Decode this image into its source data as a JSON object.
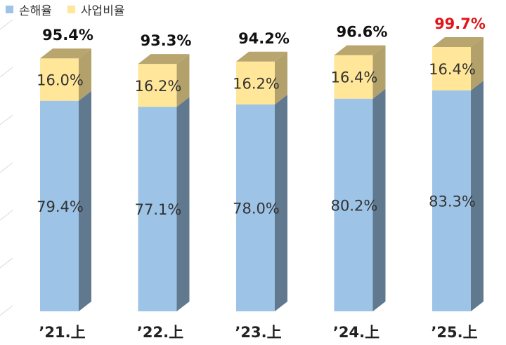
{
  "chart_data": {
    "type": "bar",
    "stacked": true,
    "style": "3d-column",
    "categories": [
      "’21.上",
      "’22.上",
      "’23.上",
      "’24.上",
      "’25.上"
    ],
    "series": [
      {
        "name": "손해율",
        "color": "#9DC3E6",
        "values": [
          79.4,
          77.1,
          78.0,
          80.2,
          83.3
        ],
        "labels": [
          "79.4%",
          "77.1%",
          "78.0%",
          "80.2%",
          "83.3%"
        ]
      },
      {
        "name": "사업비율",
        "color": "#FFE699",
        "values": [
          16.0,
          16.2,
          16.2,
          16.4,
          16.4
        ],
        "labels": [
          "16.0%",
          "16.2%",
          "16.2%",
          "16.4%",
          "16.4%"
        ]
      }
    ],
    "totals": [
      95.4,
      93.3,
      94.2,
      96.6,
      99.7
    ],
    "total_labels": [
      "95.4%",
      "93.3%",
      "94.2%",
      "96.6%",
      "99.7%"
    ],
    "highlight_color": "#E0161B",
    "highlight_index": 4,
    "ylim": [
      0,
      110
    ],
    "grid": true,
    "legend_position": "top-left",
    "title": "",
    "xlabel": "",
    "ylabel": ""
  }
}
